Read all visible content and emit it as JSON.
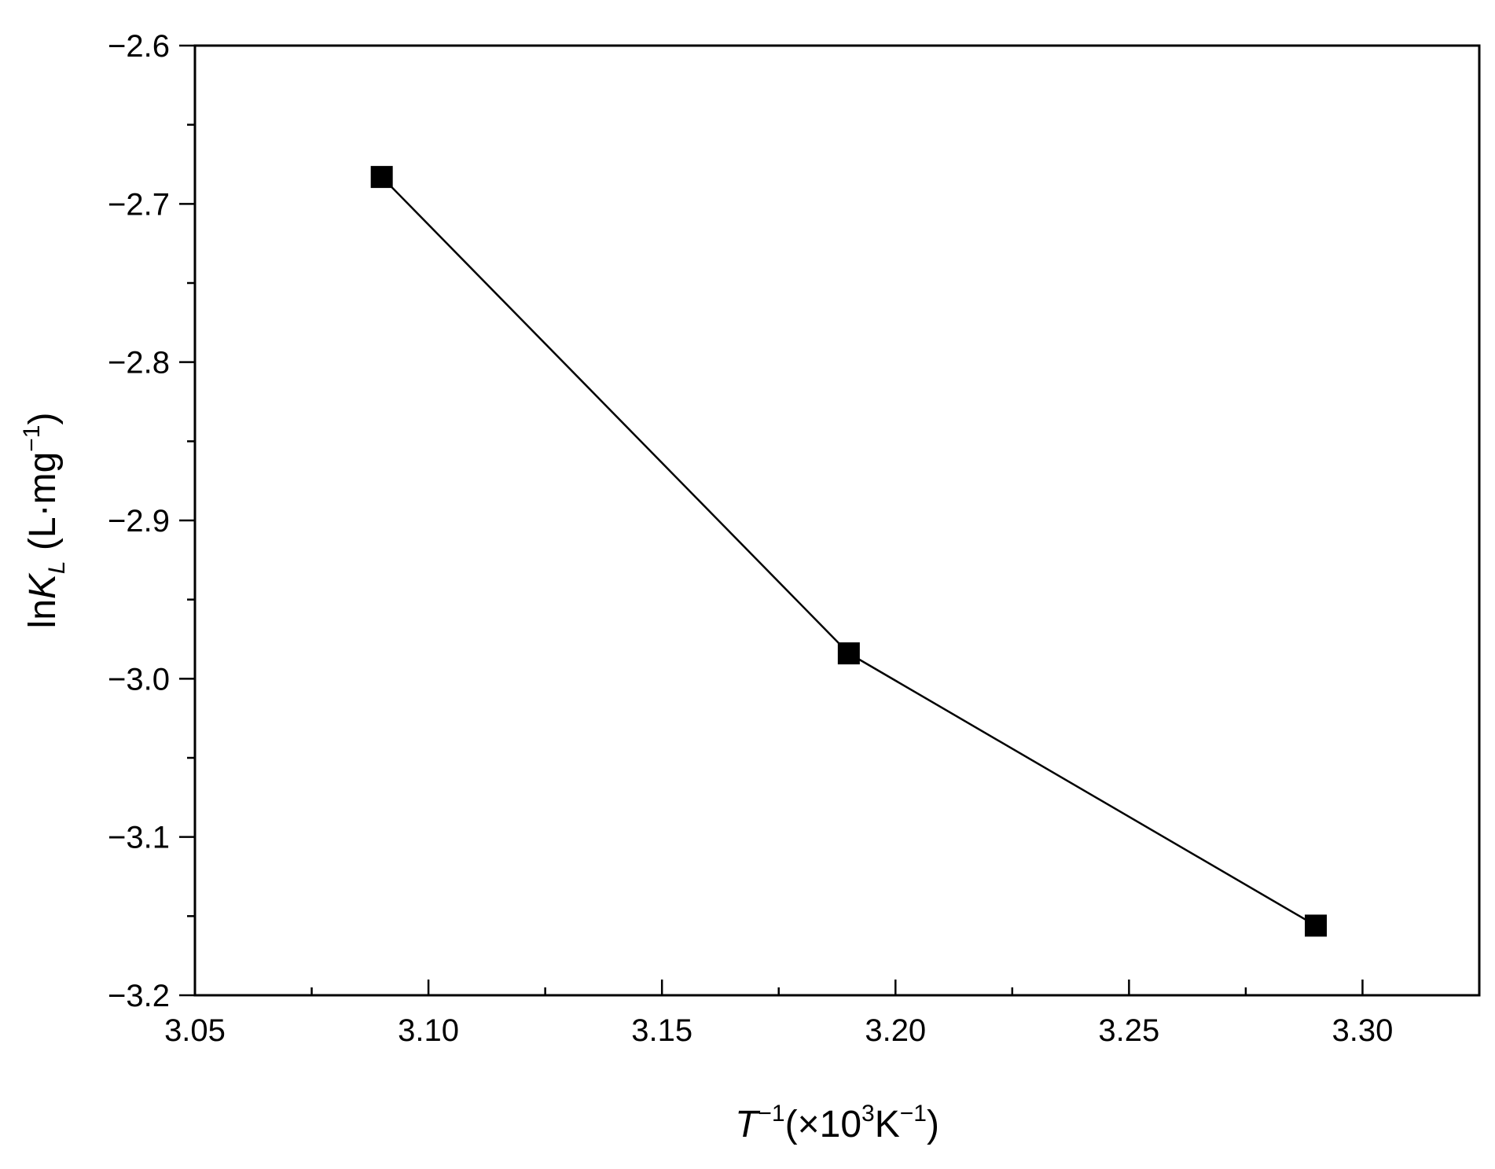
{
  "chart_data": {
    "type": "line",
    "title": "",
    "xlabel": {
      "main": "T",
      "main_sup": "−1",
      "unit_prefix": "(×10",
      "unit_exp": "3",
      "unit_mid": "K",
      "unit_sup": "−1",
      "unit_suffix": ")"
    },
    "ylabel": {
      "prefix": "ln",
      "main": "K",
      "sub": "L",
      "unit_prefix": " (L·mg",
      "unit_sup": "−1",
      "unit_suffix": ")"
    },
    "xlim": [
      3.05,
      3.325
    ],
    "ylim": [
      -3.2,
      -2.6
    ],
    "xticks": [
      3.05,
      3.1,
      3.15,
      3.2,
      3.25,
      3.3
    ],
    "xtick_labels": [
      "3.05",
      "3.10",
      "3.15",
      "3.20",
      "3.25",
      "3.30"
    ],
    "x_minor_step": 0.025,
    "yticks": [
      -2.6,
      -2.7,
      -2.8,
      -2.9,
      -3.0,
      -3.1,
      -3.2
    ],
    "ytick_labels": [
      "−2.6",
      "−2.7",
      "−2.8",
      "−2.9",
      "−3.0",
      "−3.1",
      "−3.2"
    ],
    "y_minor_step": 0.05,
    "grid": false,
    "series": [
      {
        "marker": "square",
        "color": "#000000",
        "x": [
          3.09,
          3.19,
          3.29
        ],
        "y": [
          -2.683,
          -2.984,
          -3.156
        ]
      }
    ]
  }
}
